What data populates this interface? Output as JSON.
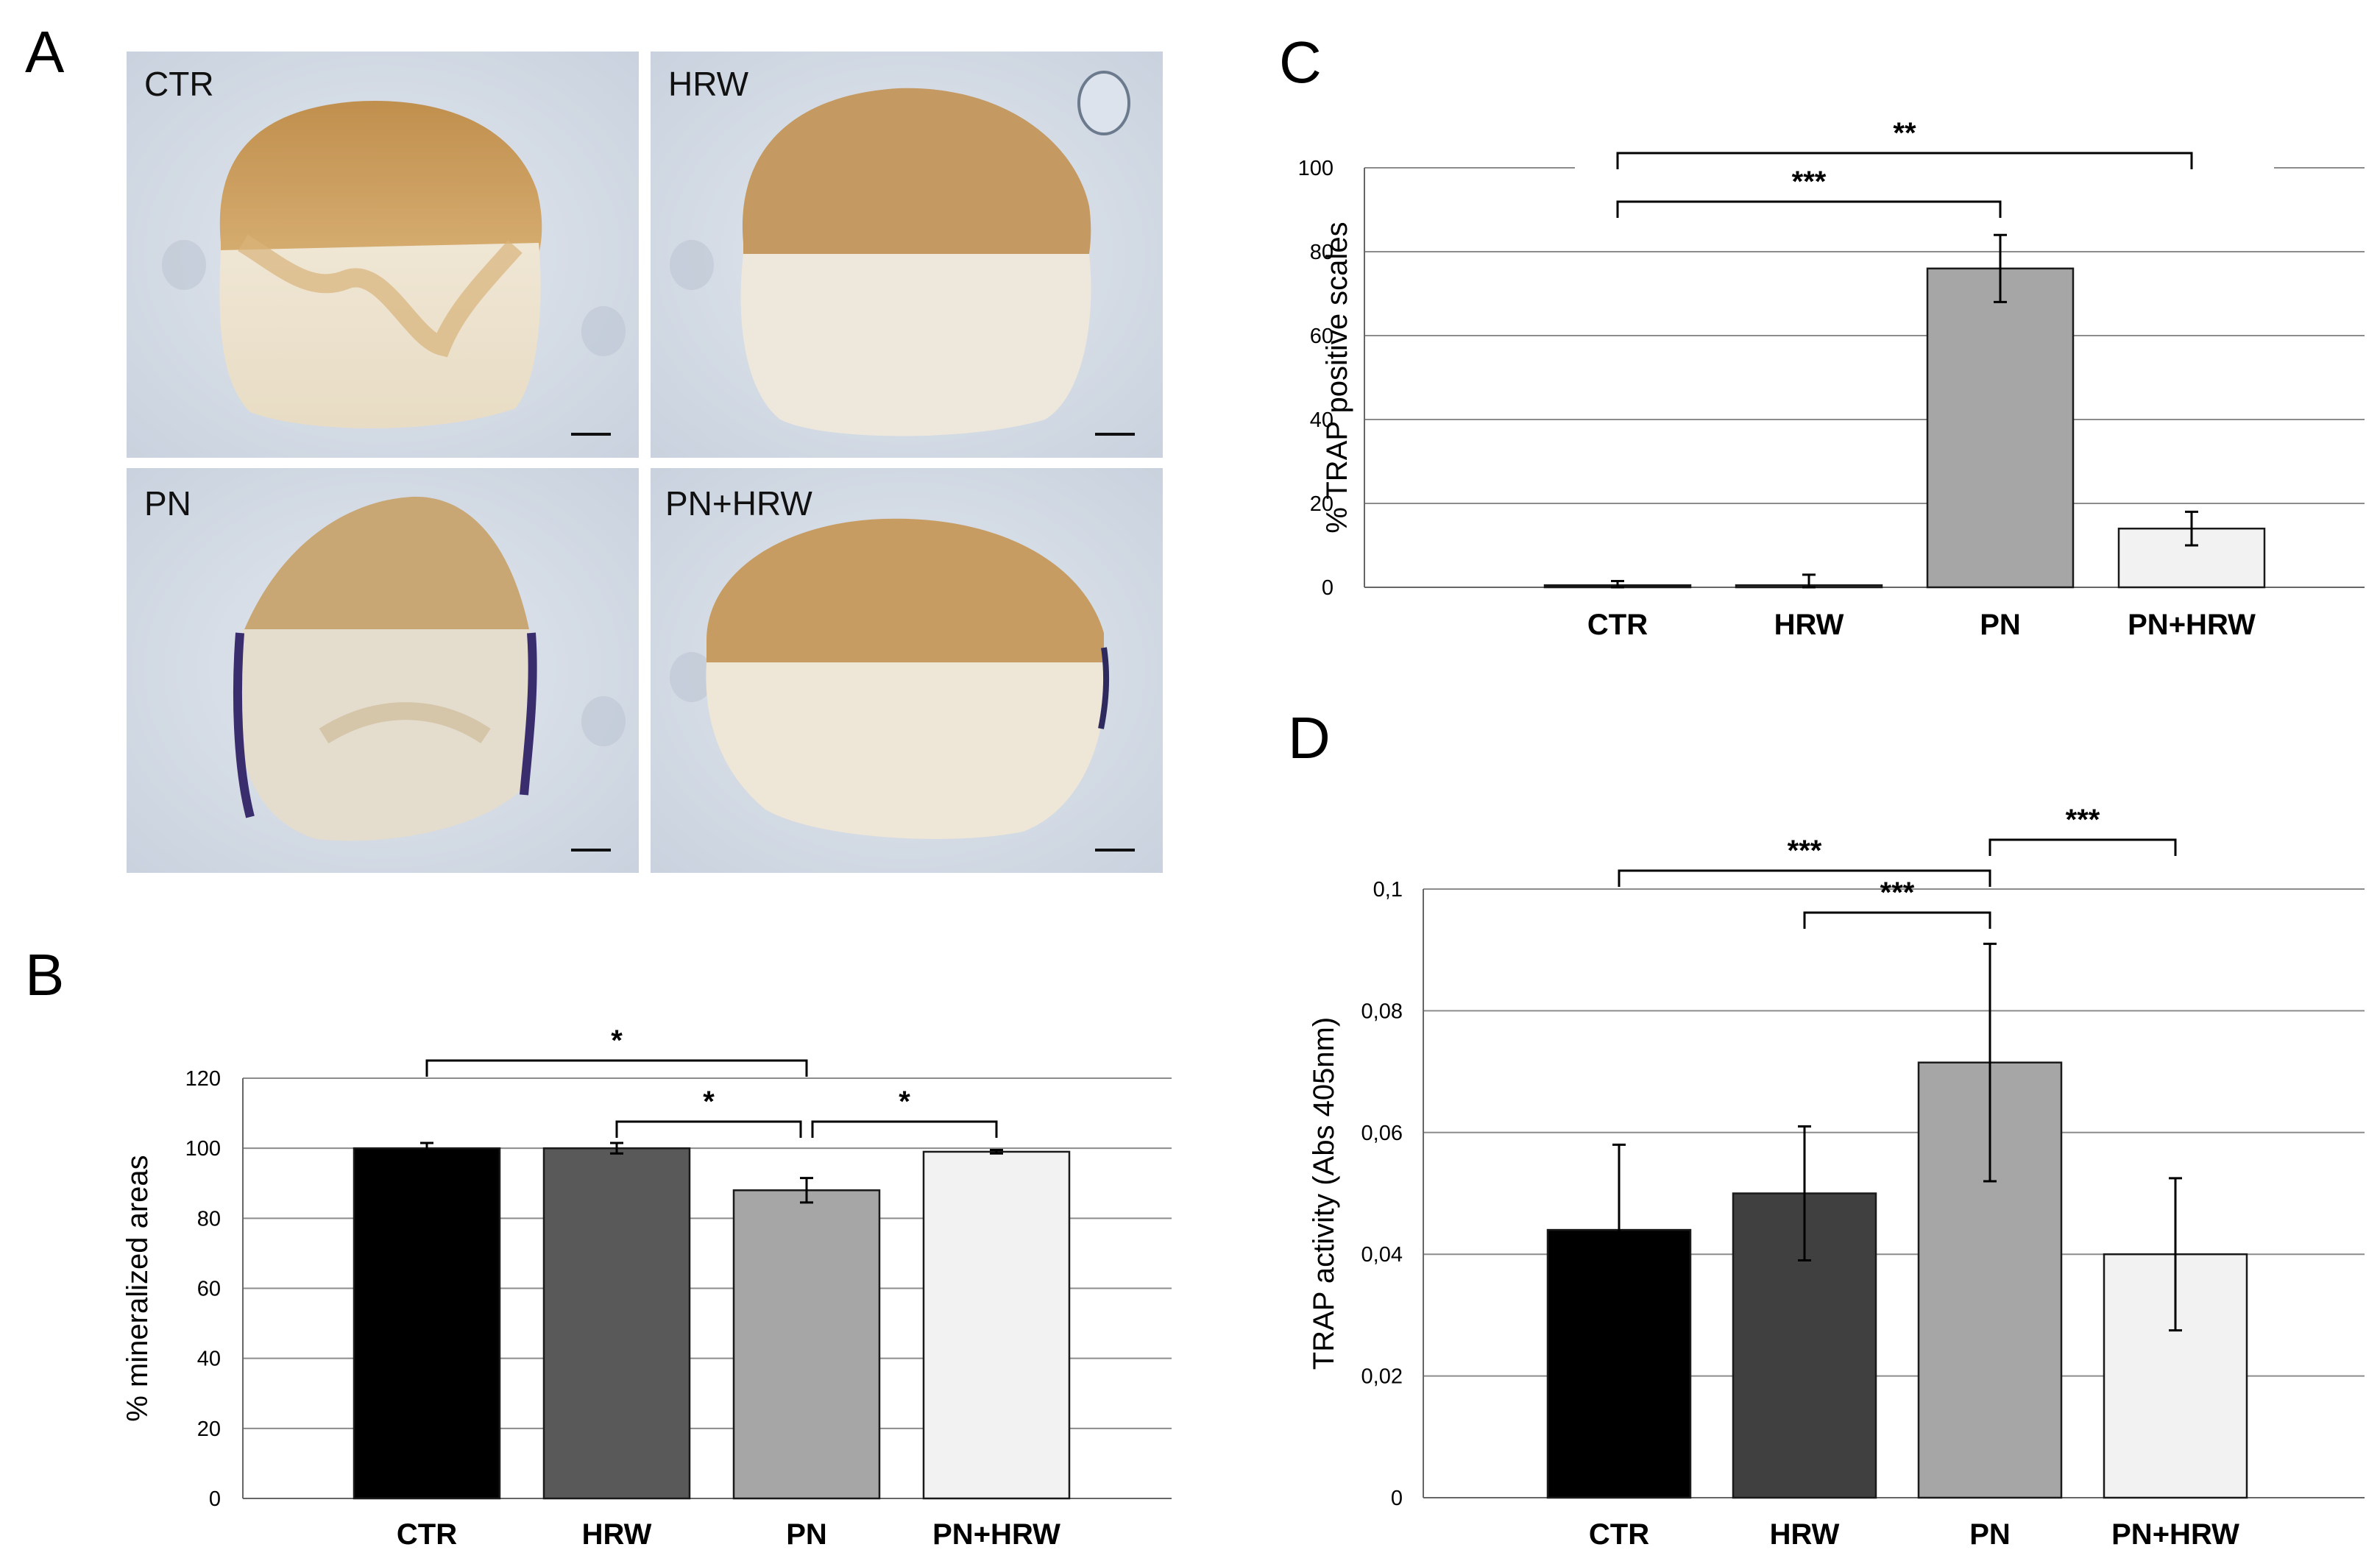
{
  "figure": {
    "panel_labels": [
      "A",
      "B",
      "C",
      "D"
    ],
    "micrographs": [
      {
        "label": "CTR"
      },
      {
        "label": "HRW"
      },
      {
        "label": "PN"
      },
      {
        "label": "PN+HRW"
      }
    ]
  },
  "chart_data": [
    {
      "panel": "B",
      "type": "bar",
      "categories": [
        "CTR",
        "HRW",
        "PN",
        "PN+HRW"
      ],
      "values": [
        100,
        100,
        88,
        99
      ],
      "errors": [
        1.5,
        1.5,
        3.5,
        0.5
      ],
      "colors": [
        "#000000",
        "#595959",
        "#a6a6a6",
        "#f2f2f2"
      ],
      "ylabel": "% mineralized areas",
      "ylim": [
        0,
        120
      ],
      "yticks": [
        0,
        20,
        40,
        60,
        80,
        100,
        120
      ],
      "ytick_labels": [
        "0",
        "20",
        "40",
        "60",
        "80",
        "100",
        "120"
      ],
      "grid": true,
      "annotations": [
        {
          "from": 0,
          "to": 2,
          "text": "*",
          "level": 0
        },
        {
          "from": 1,
          "to": 2,
          "text": "*",
          "level": 1
        },
        {
          "from": 2,
          "to": 3,
          "text": "*",
          "level": 1
        }
      ]
    },
    {
      "panel": "C",
      "type": "bar",
      "categories": [
        "CTR",
        "HRW",
        "PN",
        "PN+HRW"
      ],
      "values": [
        0.5,
        0.5,
        76,
        14
      ],
      "errors": [
        1,
        2.5,
        8,
        4
      ],
      "colors": [
        "#000000",
        "#404040",
        "#a6a6a6",
        "#f2f2f2"
      ],
      "ylabel": "% TRAP positive scales",
      "ylim": [
        0,
        100
      ],
      "yticks": [
        0,
        20,
        40,
        60,
        80,
        100
      ],
      "ytick_labels": [
        "0",
        "20",
        "40",
        "60",
        "80",
        "100"
      ],
      "grid": true,
      "annotations": [
        {
          "from": 0,
          "to": 3,
          "text": "**",
          "level": 0
        },
        {
          "from": 0,
          "to": 2,
          "text": "***",
          "level": 1
        }
      ]
    },
    {
      "panel": "D",
      "type": "bar",
      "categories": [
        "CTR",
        "HRW",
        "PN",
        "PN+HRW"
      ],
      "values": [
        0.044,
        0.05,
        0.0715,
        0.04
      ],
      "errors": [
        0.014,
        0.011,
        0.0195,
        0.0125
      ],
      "colors": [
        "#000000",
        "#404040",
        "#a6a6a6",
        "#f2f2f2"
      ],
      "ylabel": "TRAP activity (Abs 405nm)",
      "ylim": [
        0,
        0.1
      ],
      "yticks": [
        0,
        0.02,
        0.04,
        0.06,
        0.08,
        0.1
      ],
      "ytick_labels": [
        "0",
        "0,02",
        "0,04",
        "0,06",
        "0,08",
        "0,1"
      ],
      "grid": true,
      "annotations": [
        {
          "from": 0,
          "to": 2,
          "text": "***",
          "level": 0
        },
        {
          "from": 2,
          "to": 3,
          "text": "***",
          "level": 0
        },
        {
          "from": 1,
          "to": 2,
          "text": "***",
          "level": 1
        }
      ]
    }
  ]
}
